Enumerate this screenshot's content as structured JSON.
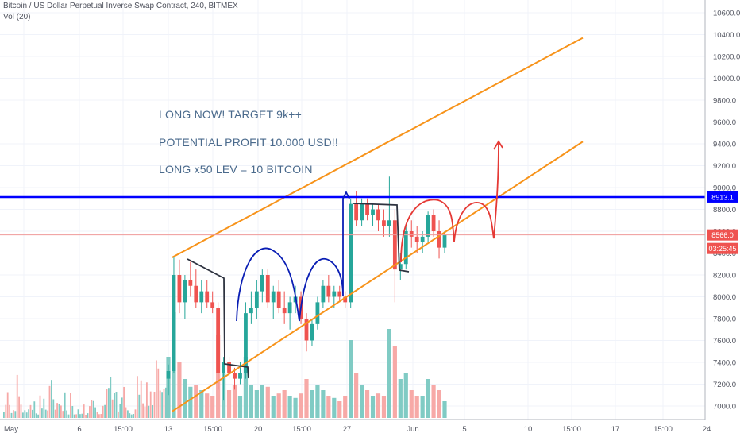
{
  "header": {
    "symbol_line": "Bitcoin / US Dollar Perpetual Inverse Swap Contract, 240, BITMEX",
    "volume_label": "Vol (20)"
  },
  "annotations": {
    "line1": "LONG NOW! TARGET 9k++",
    "line2": "POTENTIAL PROFIT 10.000 USD!!",
    "line3": "LONG x50 LEV = 10 BITCOIN"
  },
  "price_tags": {
    "horizontal_level": "8913.1",
    "last_price": "8566.0",
    "countdown": "03:25:45"
  },
  "colors": {
    "up": "#26a69a",
    "down": "#ef5350",
    "channel": "#f7931a",
    "level_line": "#0000ff",
    "blue_curve": "#0a1eb4",
    "dark_curve": "#2e3340",
    "red_curve": "#e53935"
  },
  "chart_data": {
    "type": "candlestick",
    "y_axis": {
      "min": 6900,
      "max": 10700,
      "ticks": [
        "7000.0",
        "7200.0",
        "7400.0",
        "7600.0",
        "7800.0",
        "8000.0",
        "8200.0",
        "8400.0",
        "8600.0",
        "8800.0",
        "9000.0",
        "9200.0",
        "9400.0",
        "9600.0",
        "9800.0",
        "10000.0",
        "10200.0",
        "10400.0",
        "10600.0"
      ]
    },
    "x_axis": {
      "ticks": [
        "May",
        "6",
        "15:00",
        "13",
        "15:00",
        "20",
        "15:00",
        "27",
        "Jun",
        "5",
        "10",
        "15:00",
        "17",
        "15:00",
        "24"
      ]
    },
    "horizontal_level": 8913.1,
    "last_price": 8566.0,
    "channel": {
      "upper": [
        [
          12.2,
          8360
        ],
        [
          34.5,
          10370
        ]
      ],
      "lower": [
        [
          12.2,
          6950
        ],
        [
          34.5,
          9420
        ]
      ]
    },
    "candles": [
      {
        "day": 12.0,
        "open": 7250,
        "high": 7380,
        "low": 7100,
        "close": 7320
      },
      {
        "day": 12.3,
        "open": 7320,
        "high": 8360,
        "low": 7300,
        "close": 8200
      },
      {
        "day": 12.6,
        "open": 8200,
        "high": 8340,
        "low": 7850,
        "close": 7950
      },
      {
        "day": 12.9,
        "open": 7950,
        "high": 8200,
        "low": 7800,
        "close": 8150
      },
      {
        "day": 13.2,
        "open": 8150,
        "high": 8320,
        "low": 8000,
        "close": 8100
      },
      {
        "day": 13.5,
        "open": 8100,
        "high": 8250,
        "low": 7900,
        "close": 7950
      },
      {
        "day": 13.8,
        "open": 7950,
        "high": 8150,
        "low": 7850,
        "close": 8050
      },
      {
        "day": 14.1,
        "open": 8050,
        "high": 8150,
        "low": 7900,
        "close": 7950
      },
      {
        "day": 14.4,
        "open": 7950,
        "high": 8050,
        "low": 7850,
        "close": 7900
      },
      {
        "day": 14.7,
        "open": 7900,
        "high": 7950,
        "low": 7150,
        "close": 7300
      },
      {
        "day": 15.0,
        "open": 7300,
        "high": 7450,
        "low": 7050,
        "close": 7400
      },
      {
        "day": 15.3,
        "open": 7400,
        "high": 7450,
        "low": 7250,
        "close": 7300
      },
      {
        "day": 15.6,
        "open": 7300,
        "high": 7350,
        "low": 7150,
        "close": 7250
      },
      {
        "day": 15.9,
        "open": 7250,
        "high": 7400,
        "low": 7200,
        "close": 7300
      },
      {
        "day": 16.2,
        "open": 7300,
        "high": 7950,
        "low": 7250,
        "close": 7850
      },
      {
        "day": 16.5,
        "open": 7850,
        "high": 8050,
        "low": 7750,
        "close": 7900
      },
      {
        "day": 16.8,
        "open": 7900,
        "high": 8150,
        "low": 7800,
        "close": 8050
      },
      {
        "day": 17.1,
        "open": 8050,
        "high": 8250,
        "low": 7950,
        "close": 8200
      },
      {
        "day": 17.4,
        "open": 8200,
        "high": 8250,
        "low": 7900,
        "close": 7950
      },
      {
        "day": 17.7,
        "open": 7950,
        "high": 8100,
        "low": 7800,
        "close": 8050
      },
      {
        "day": 18.0,
        "open": 8050,
        "high": 8150,
        "low": 7850,
        "close": 7900
      },
      {
        "day": 18.3,
        "open": 7900,
        "high": 8050,
        "low": 7750,
        "close": 7850
      },
      {
        "day": 18.6,
        "open": 7850,
        "high": 8000,
        "low": 7700,
        "close": 7950
      },
      {
        "day": 18.9,
        "open": 7950,
        "high": 8100,
        "low": 7850,
        "close": 8000
      },
      {
        "day": 19.2,
        "open": 8000,
        "high": 8050,
        "low": 7750,
        "close": 7800
      },
      {
        "day": 19.5,
        "open": 7800,
        "high": 7850,
        "low": 7500,
        "close": 7600
      },
      {
        "day": 19.8,
        "open": 7600,
        "high": 7800,
        "low": 7550,
        "close": 7750
      },
      {
        "day": 20.1,
        "open": 7750,
        "high": 8000,
        "low": 7700,
        "close": 7950
      },
      {
        "day": 20.4,
        "open": 7950,
        "high": 8150,
        "low": 7900,
        "close": 8100
      },
      {
        "day": 20.7,
        "open": 8100,
        "high": 8200,
        "low": 7950,
        "close": 8000
      },
      {
        "day": 21.0,
        "open": 8000,
        "high": 8100,
        "low": 7900,
        "close": 8050
      },
      {
        "day": 21.3,
        "open": 8050,
        "high": 8100,
        "low": 7950,
        "close": 8000
      },
      {
        "day": 21.6,
        "open": 8000,
        "high": 8050,
        "low": 7900,
        "close": 7950
      },
      {
        "day": 21.9,
        "open": 7950,
        "high": 8900,
        "low": 7900,
        "close": 8850
      },
      {
        "day": 22.2,
        "open": 8850,
        "high": 8970,
        "low": 8650,
        "close": 8700
      },
      {
        "day": 22.5,
        "open": 8700,
        "high": 8900,
        "low": 8650,
        "close": 8850
      },
      {
        "day": 22.8,
        "open": 8850,
        "high": 8900,
        "low": 8700,
        "close": 8750
      },
      {
        "day": 23.1,
        "open": 8750,
        "high": 8850,
        "low": 8650,
        "close": 8800
      },
      {
        "day": 23.4,
        "open": 8800,
        "high": 8850,
        "low": 8600,
        "close": 8700
      },
      {
        "day": 23.7,
        "open": 8700,
        "high": 8800,
        "low": 8550,
        "close": 8650
      },
      {
        "day": 24.0,
        "open": 8650,
        "high": 9100,
        "low": 8550,
        "close": 8700
      },
      {
        "day": 24.3,
        "open": 8700,
        "high": 8800,
        "low": 7950,
        "close": 8250
      },
      {
        "day": 24.6,
        "open": 8250,
        "high": 8400,
        "low": 8150,
        "close": 8300
      },
      {
        "day": 24.9,
        "open": 8300,
        "high": 8650,
        "low": 8250,
        "close": 8600
      },
      {
        "day": 25.2,
        "open": 8600,
        "high": 8700,
        "low": 8450,
        "close": 8550
      },
      {
        "day": 25.5,
        "open": 8550,
        "high": 8650,
        "low": 8400,
        "close": 8500
      },
      {
        "day": 25.8,
        "open": 8500,
        "high": 8600,
        "low": 8400,
        "close": 8550
      },
      {
        "day": 26.1,
        "open": 8550,
        "high": 8780,
        "low": 8500,
        "close": 8750
      },
      {
        "day": 26.4,
        "open": 8750,
        "high": 8800,
        "low": 8550,
        "close": 8600
      },
      {
        "day": 26.7,
        "open": 8600,
        "high": 8700,
        "low": 8350,
        "close": 8450
      },
      {
        "day": 27.0,
        "open": 8450,
        "high": 8600,
        "low": 8400,
        "close": 8566
      }
    ],
    "volume": [
      {
        "day": 12.0,
        "v": 0.55,
        "up": true
      },
      {
        "day": 12.3,
        "v": 0.95,
        "up": true
      },
      {
        "day": 12.6,
        "v": 0.5,
        "up": false
      },
      {
        "day": 12.9,
        "v": 0.35,
        "up": true
      },
      {
        "day": 13.2,
        "v": 0.28,
        "up": true
      },
      {
        "day": 13.5,
        "v": 0.3,
        "up": false
      },
      {
        "day": 13.8,
        "v": 0.25,
        "up": true
      },
      {
        "day": 14.1,
        "v": 0.22,
        "up": false
      },
      {
        "day": 14.4,
        "v": 0.2,
        "up": false
      },
      {
        "day": 14.7,
        "v": 0.75,
        "up": false
      },
      {
        "day": 15.0,
        "v": 0.4,
        "up": true
      },
      {
        "day": 15.3,
        "v": 0.25,
        "up": false
      },
      {
        "day": 15.6,
        "v": 0.3,
        "up": false
      },
      {
        "day": 15.9,
        "v": 0.2,
        "up": true
      },
      {
        "day": 16.2,
        "v": 0.55,
        "up": true
      },
      {
        "day": 16.5,
        "v": 0.3,
        "up": true
      },
      {
        "day": 16.8,
        "v": 0.25,
        "up": true
      },
      {
        "day": 17.1,
        "v": 0.3,
        "up": true
      },
      {
        "day": 17.4,
        "v": 0.28,
        "up": false
      },
      {
        "day": 17.7,
        "v": 0.2,
        "up": true
      },
      {
        "day": 18.0,
        "v": 0.22,
        "up": false
      },
      {
        "day": 18.3,
        "v": 0.25,
        "up": false
      },
      {
        "day": 18.6,
        "v": 0.2,
        "up": true
      },
      {
        "day": 18.9,
        "v": 0.18,
        "up": true
      },
      {
        "day": 19.2,
        "v": 0.22,
        "up": false
      },
      {
        "day": 19.5,
        "v": 0.35,
        "up": false
      },
      {
        "day": 19.8,
        "v": 0.25,
        "up": true
      },
      {
        "day": 20.1,
        "v": 0.3,
        "up": true
      },
      {
        "day": 20.4,
        "v": 0.25,
        "up": true
      },
      {
        "day": 20.7,
        "v": 0.2,
        "up": false
      },
      {
        "day": 21.0,
        "v": 0.18,
        "up": true
      },
      {
        "day": 21.3,
        "v": 0.15,
        "up": false
      },
      {
        "day": 21.6,
        "v": 0.2,
        "up": false
      },
      {
        "day": 21.9,
        "v": 0.7,
        "up": true
      },
      {
        "day": 22.2,
        "v": 0.4,
        "up": false
      },
      {
        "day": 22.5,
        "v": 0.3,
        "up": true
      },
      {
        "day": 22.8,
        "v": 0.25,
        "up": false
      },
      {
        "day": 23.1,
        "v": 0.2,
        "up": true
      },
      {
        "day": 23.4,
        "v": 0.22,
        "up": false
      },
      {
        "day": 23.7,
        "v": 0.2,
        "up": false
      },
      {
        "day": 24.0,
        "v": 0.8,
        "up": true
      },
      {
        "day": 24.3,
        "v": 0.65,
        "up": false
      },
      {
        "day": 24.6,
        "v": 0.35,
        "up": true
      },
      {
        "day": 24.9,
        "v": 0.4,
        "up": true
      },
      {
        "day": 25.2,
        "v": 0.25,
        "up": false
      },
      {
        "day": 25.5,
        "v": 0.2,
        "up": false
      },
      {
        "day": 25.8,
        "v": 0.2,
        "up": true
      },
      {
        "day": 26.1,
        "v": 0.35,
        "up": true
      },
      {
        "day": 26.4,
        "v": 0.3,
        "up": false
      },
      {
        "day": 26.7,
        "v": 0.25,
        "up": false
      },
      {
        "day": 27.0,
        "v": 0.15,
        "up": true
      }
    ]
  }
}
